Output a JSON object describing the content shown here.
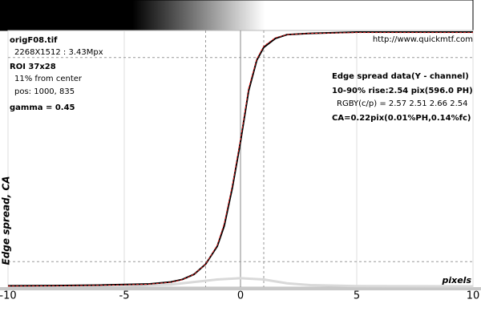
{
  "chart_data": {
    "type": "line",
    "xlabel": "pixels",
    "ylabel": "Edge spread, CA",
    "xlim": [
      -10,
      10
    ],
    "ylim": [
      0,
      1.0
    ],
    "xticks": [
      -10,
      -5,
      0,
      5,
      10
    ],
    "grid": true,
    "reference_lines": {
      "x": [
        -1.5,
        1.0
      ],
      "y": [
        0.1,
        0.9
      ]
    },
    "info_left": [
      "origF08.tif",
      "2268X1512 : 3.43Mpx",
      "ROI 37x28",
      "11% from center",
      "pos: 1000, 835",
      "gamma = 0.45"
    ],
    "url": "http://www.quickmtf.com",
    "info_right": [
      "Edge spread data(Y - channel)",
      "10-90% rise:2.54 pix(596.0 PH)",
      "RGBY(c/p) = 2.57 2.51 2.66 2.54",
      "CA=0.22pix(0.01%PH,0.14%fc)"
    ],
    "series": [
      {
        "color": "#d9d9d9",
        "width": 3,
        "dash": false,
        "x": [
          -10,
          -5,
          -3,
          -2,
          -1,
          0,
          1,
          2,
          3,
          5,
          10
        ],
        "values": [
          0.003,
          0.005,
          0.01,
          0.02,
          0.03,
          0.035,
          0.03,
          0.015,
          0.008,
          0.004,
          0.003
        ]
      },
      {
        "color": "#000000",
        "width": 2,
        "dash": false,
        "x": [
          -10,
          -8,
          -6,
          -4,
          -3,
          -2.5,
          -2,
          -1.5,
          -1,
          -0.7,
          -0.35,
          0,
          0.35,
          0.7,
          1,
          1.5,
          2,
          3,
          5,
          10
        ],
        "values": [
          0.005,
          0.006,
          0.008,
          0.012,
          0.02,
          0.03,
          0.05,
          0.09,
          0.16,
          0.24,
          0.39,
          0.57,
          0.77,
          0.89,
          0.94,
          0.975,
          0.99,
          0.995,
          1.0,
          1.0
        ]
      },
      {
        "color": "#e02020",
        "width": 1,
        "dash": true,
        "x": [
          -10,
          -8,
          -6,
          -4,
          -3,
          -2.5,
          -2,
          -1.5,
          -1,
          -0.7,
          -0.35,
          0,
          0.35,
          0.7,
          1,
          1.5,
          2,
          3,
          5,
          10
        ],
        "values": [
          0.004,
          0.005,
          0.007,
          0.011,
          0.019,
          0.029,
          0.05,
          0.09,
          0.165,
          0.25,
          0.4,
          0.58,
          0.78,
          0.895,
          0.945,
          0.978,
          0.99,
          0.995,
          0.998,
          0.998
        ]
      }
    ]
  }
}
